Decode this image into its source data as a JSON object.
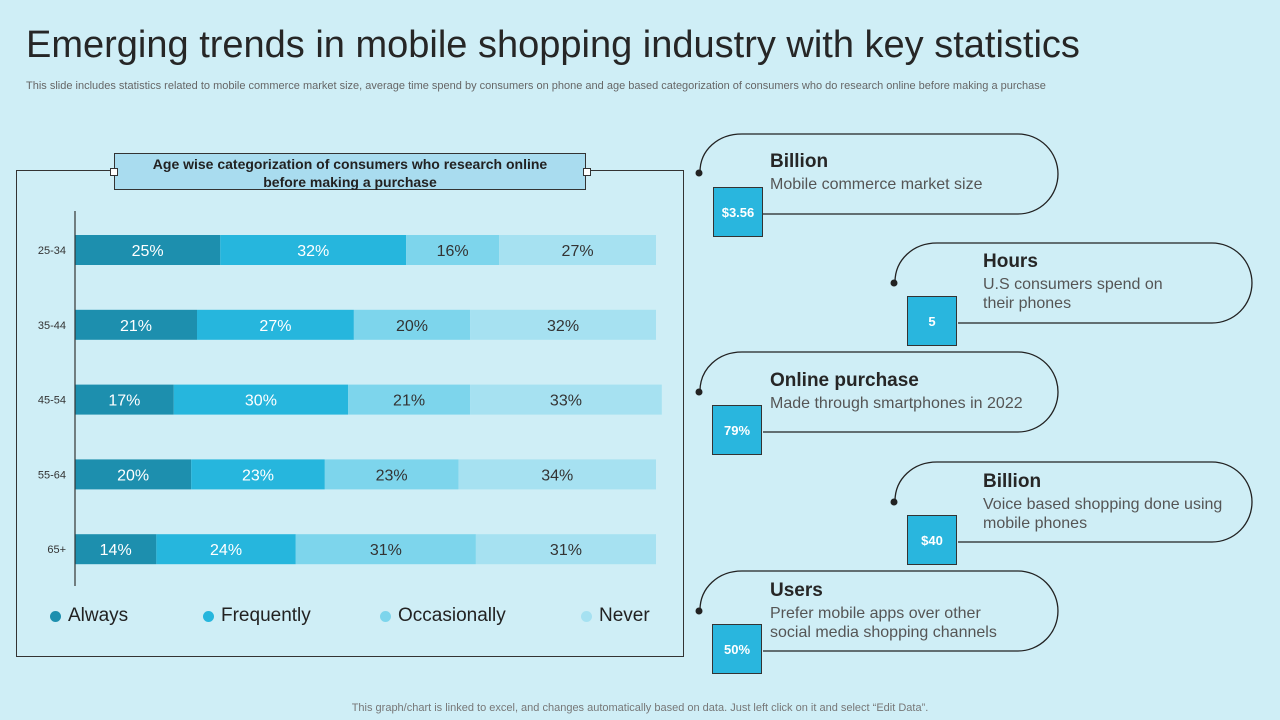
{
  "header": {
    "title": "Emerging trends in mobile shopping industry with key statistics",
    "subtitle": "This slide includes statistics related to mobile commerce market size, average time spend by consumers on phone and age based categorization of consumers who do research online before making a purchase"
  },
  "footer": "This graph/chart is linked to excel,  and changes automatically based on data. Just left click on it and select “Edit Data”.",
  "chart_data": {
    "type": "bar",
    "orientation": "horizontal",
    "stacked": true,
    "title_line1": "Age wise categorization of consumers who research online",
    "title_line2": "before making a purchase",
    "categories": [
      "25-34",
      "35-44",
      "45-54",
      "55-64",
      "65+"
    ],
    "series": [
      {
        "name": "Always",
        "color": "#1d8fae",
        "values": [
          25,
          21,
          17,
          20,
          14
        ]
      },
      {
        "name": "Frequently",
        "color": "#26b6dd",
        "values": [
          32,
          27,
          30,
          23,
          24
        ]
      },
      {
        "name": "Occasionally",
        "color": "#7dd5ec",
        "values": [
          16,
          20,
          21,
          23,
          31
        ]
      },
      {
        "name": "Never",
        "color": "#a6e1f1",
        "values": [
          27,
          32,
          33,
          34,
          31
        ]
      }
    ],
    "value_suffix": "%",
    "xlim": [
      0,
      100
    ],
    "legend": "bottom",
    "grid": false
  },
  "stats": [
    {
      "value": "$3.56",
      "heading": "Billion",
      "description": "Mobile commerce market size"
    },
    {
      "value": "5",
      "heading": "Hours",
      "description": "U.S consumers  spend on their phones"
    },
    {
      "value": "79%",
      "heading": "Online purchase",
      "description": "Made through  smartphones in 2022"
    },
    {
      "value": "$40",
      "heading": "Billion",
      "description": "Voice based shopping done using mobile phones"
    },
    {
      "value": "50%",
      "heading": "Users",
      "description": "Prefer mobile apps over other social media shopping channels"
    }
  ],
  "colors": {
    "background": "#cfeef6",
    "stat_box": "#29b6de"
  }
}
